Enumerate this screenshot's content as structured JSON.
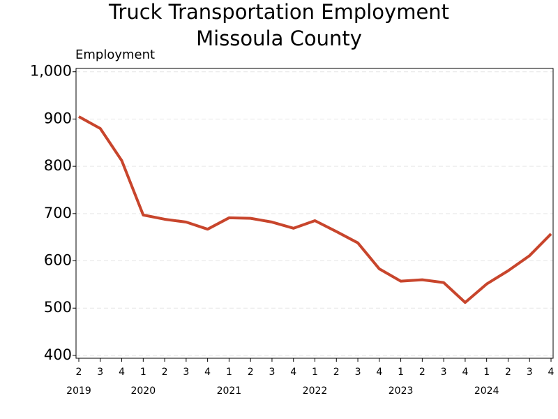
{
  "chart_data": {
    "type": "line",
    "title": [
      "Truck Transportation Employment",
      "Missoula County"
    ],
    "y_label": "Employment",
    "categories": [
      "2",
      "3",
      "4",
      "1",
      "2",
      "3",
      "4",
      "1",
      "2",
      "3",
      "4",
      "1",
      "2",
      "3",
      "4",
      "1",
      "2",
      "3",
      "4",
      "1",
      "2",
      "3",
      "4"
    ],
    "year_labels": [
      "2019",
      "2020",
      "2021",
      "2022",
      "2023",
      "2024"
    ],
    "series": [
      {
        "name": "Employment",
        "color": "#c8452c",
        "values": [
          905,
          880,
          812,
          697,
          688,
          682,
          667,
          691,
          690,
          682,
          669,
          685,
          662,
          638,
          583,
          557,
          560,
          554,
          512,
          551,
          579,
          611,
          657
        ]
      }
    ],
    "ylim": [
      394,
      1007
    ],
    "yticks": [
      400,
      500,
      600,
      700,
      800,
      900,
      {
        "value": 1000,
        "label": "1,000"
      }
    ],
    "grid": true
  }
}
